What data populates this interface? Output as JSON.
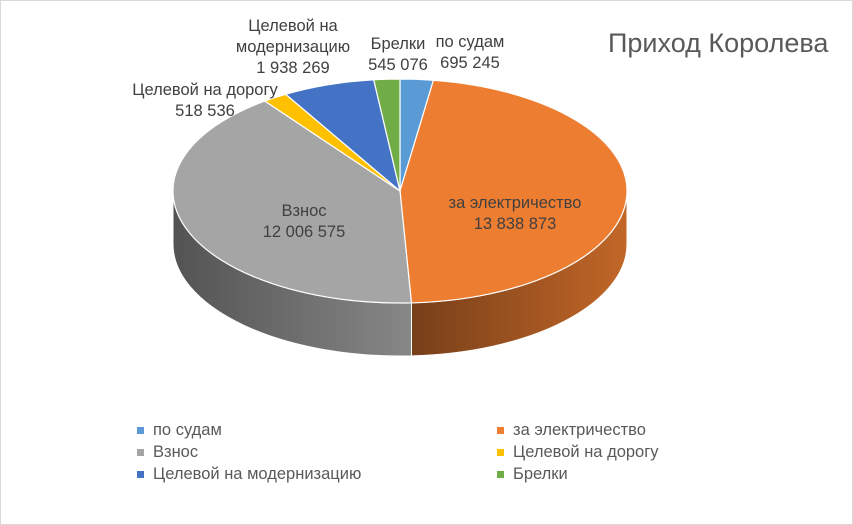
{
  "chart_data": {
    "type": "pie",
    "title": "Приход Королева",
    "slices": [
      {
        "name": "по судам",
        "value": 695245,
        "value_label": "695 245",
        "color": "#5b9bd5"
      },
      {
        "name": "за электричество",
        "value": 13838873,
        "value_label": "13 838 873",
        "color": "#ed7d31"
      },
      {
        "name": "Взнос",
        "value": 12006575,
        "value_label": "12 006 575",
        "color": "#a5a5a5"
      },
      {
        "name": "Целевой на дорогу",
        "value": 518536,
        "value_label": "518 536",
        "color": "#ffc000"
      },
      {
        "name": "Целевой на модернизацию",
        "value": 1938269,
        "value_label": "1 938 269",
        "color": "#4472c4"
      },
      {
        "name": "Брелки",
        "value": 545076,
        "value_label": "545 076",
        "color": "#70ad47"
      }
    ],
    "legend": {
      "position": "bottom",
      "items": [
        "по судам",
        "за электричество",
        "Взнос",
        "Целевой на дорогу",
        "Целевой на модернизацию",
        "Брелки"
      ]
    }
  }
}
